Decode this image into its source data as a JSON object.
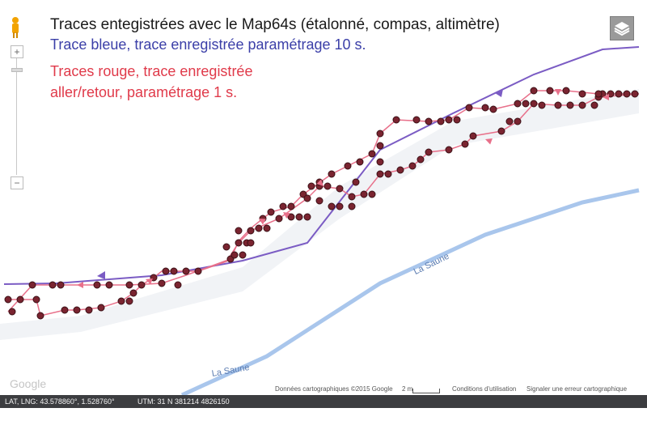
{
  "captions": {
    "title": "Traces entegistrées avec le Map64s (étalonné, compas, altimètre)",
    "blue": "Trace bleue, trace enregistrée paramétrage 10 s.",
    "red_line1": "Traces rouge, trace enregistrée",
    "red_line2": "aller/retour, paramétrage 1 s."
  },
  "map": {
    "river_name": "La Saune",
    "river_label_2": "La Saune",
    "google_logo": "Google",
    "attribution": "Données cartographiques ©2015 Google",
    "scale_label": "2 m",
    "terms": "Conditions d'utilisation",
    "report": "Signaler une erreur cartographique",
    "zoom_in": "+",
    "zoom_out": "−"
  },
  "status_bar": {
    "latlng": "LAT, LNG: 43.578860°, 1.528760°",
    "utm": "UTM: 31 N  381214  4826150"
  },
  "colors": {
    "blue_track": "#7b5cc4",
    "red_track": "#e8708a",
    "point_fill": "#7a2430",
    "river": "#a9c6ec",
    "river_edge": "#ffffff",
    "map_background": "#f2f2f2"
  },
  "icons": {
    "layers": "layers-icon",
    "pegman": "pegman-icon"
  }
}
